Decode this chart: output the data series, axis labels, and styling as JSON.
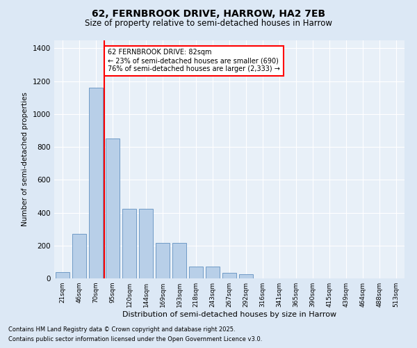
{
  "title_line1": "62, FERNBROOK DRIVE, HARROW, HA2 7EB",
  "title_line2": "Size of property relative to semi-detached houses in Harrow",
  "xlabel": "Distribution of semi-detached houses by size in Harrow",
  "ylabel": "Number of semi-detached properties",
  "categories": [
    "21sqm",
    "46sqm",
    "70sqm",
    "95sqm",
    "120sqm",
    "144sqm",
    "169sqm",
    "193sqm",
    "218sqm",
    "243sqm",
    "267sqm",
    "292sqm",
    "316sqm",
    "341sqm",
    "365sqm",
    "390sqm",
    "415sqm",
    "439sqm",
    "464sqm",
    "488sqm",
    "513sqm"
  ],
  "values": [
    40,
    270,
    1160,
    850,
    425,
    425,
    215,
    215,
    70,
    70,
    35,
    25,
    0,
    0,
    0,
    0,
    0,
    0,
    0,
    0,
    0
  ],
  "bar_color": "#b8cfe8",
  "bar_edge_color": "#6090c0",
  "red_line_x": 2.5,
  "annotation_text": "62 FERNBROOK DRIVE: 82sqm\n← 23% of semi-detached houses are smaller (690)\n76% of semi-detached houses are larger (2,333) →",
  "ylim": [
    0,
    1450
  ],
  "yticks": [
    0,
    200,
    400,
    600,
    800,
    1000,
    1200,
    1400
  ],
  "footer_line1": "Contains HM Land Registry data © Crown copyright and database right 2025.",
  "footer_line2": "Contains public sector information licensed under the Open Government Licence v3.0.",
  "bg_color": "#dce8f5",
  "plot_bg_color": "#e8f0f8"
}
